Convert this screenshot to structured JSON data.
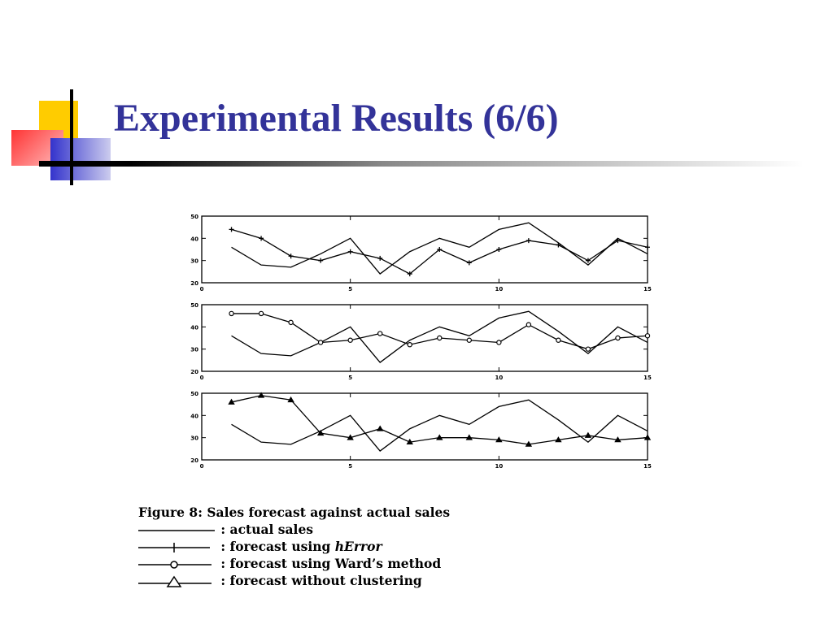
{
  "slide": {
    "title": "Experimental Results  (6/6)",
    "accent_colors": {
      "title_text": "#333399",
      "square_yellow": "#FFCC00",
      "square_red": "#FF3333",
      "square_blue": "#3333CC"
    }
  },
  "chart_data": [
    {
      "type": "line",
      "panel": "hError",
      "x_ticks": [
        0,
        5,
        10,
        15
      ],
      "y_ticks": [
        20,
        30,
        40,
        50
      ],
      "xlim": [
        0,
        15
      ],
      "ylim": [
        20,
        50
      ],
      "x": [
        1,
        2,
        3,
        4,
        5,
        6,
        7,
        8,
        9,
        10,
        11,
        12,
        13,
        14,
        15
      ],
      "series": [
        {
          "name": "actual sales",
          "marker": "none",
          "values": [
            36,
            28,
            27,
            33,
            40,
            24,
            34,
            40,
            36,
            44,
            47,
            38,
            28,
            40,
            33
          ]
        },
        {
          "name": "forecast using hError",
          "marker": "plus",
          "values": [
            44,
            40,
            32,
            30,
            34,
            31,
            24,
            35,
            29,
            35,
            39,
            37,
            30,
            39,
            36
          ]
        }
      ]
    },
    {
      "type": "line",
      "panel": "Ward",
      "x_ticks": [
        0,
        5,
        10,
        15
      ],
      "y_ticks": [
        20,
        30,
        40,
        50
      ],
      "xlim": [
        0,
        15
      ],
      "ylim": [
        20,
        50
      ],
      "x": [
        1,
        2,
        3,
        4,
        5,
        6,
        7,
        8,
        9,
        10,
        11,
        12,
        13,
        14,
        15
      ],
      "series": [
        {
          "name": "actual sales",
          "marker": "none",
          "values": [
            36,
            28,
            27,
            33,
            40,
            24,
            34,
            40,
            36,
            44,
            47,
            38,
            28,
            40,
            33
          ]
        },
        {
          "name": "forecast using Ward's method",
          "marker": "circle",
          "values": [
            46,
            46,
            42,
            33,
            34,
            37,
            32,
            35,
            34,
            33,
            41,
            34,
            30,
            35,
            36
          ]
        }
      ]
    },
    {
      "type": "line",
      "panel": "no-clustering",
      "x_ticks": [
        0,
        5,
        10,
        15
      ],
      "y_ticks": [
        20,
        30,
        40,
        50
      ],
      "xlim": [
        0,
        15
      ],
      "ylim": [
        20,
        50
      ],
      "x": [
        1,
        2,
        3,
        4,
        5,
        6,
        7,
        8,
        9,
        10,
        11,
        12,
        13,
        14,
        15
      ],
      "series": [
        {
          "name": "actual sales",
          "marker": "none",
          "values": [
            36,
            28,
            27,
            33,
            40,
            24,
            34,
            40,
            36,
            44,
            47,
            38,
            28,
            40,
            33
          ]
        },
        {
          "name": "forecast without clustering",
          "marker": "triangle",
          "values": [
            46,
            49,
            47,
            32,
            30,
            34,
            28,
            30,
            30,
            29,
            27,
            29,
            31,
            29,
            30
          ]
        }
      ]
    }
  ],
  "caption": {
    "figure_label": "Figure 8:",
    "figure_text": "Sales forecast against actual sales",
    "legend": [
      {
        "marker": "none",
        "sep": ":",
        "text": "actual sales"
      },
      {
        "marker": "plus",
        "sep": ":",
        "text": "forecast using ",
        "italic": "hError"
      },
      {
        "marker": "circle",
        "sep": ":",
        "text": "forecast using Ward’s method"
      },
      {
        "marker": "triangle",
        "sep": ":",
        "text": "forecast without clustering"
      }
    ]
  }
}
